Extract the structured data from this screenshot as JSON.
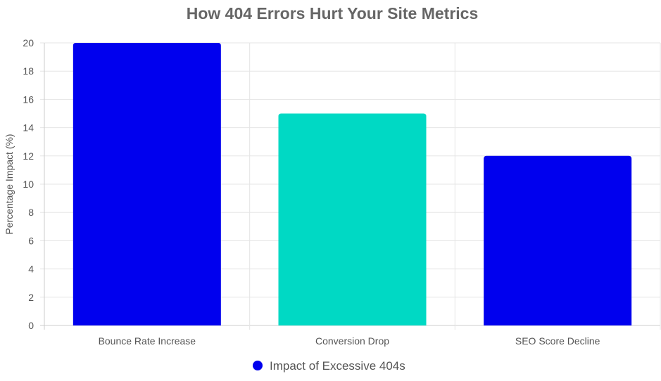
{
  "chart_data": {
    "type": "bar",
    "title": "How 404 Errors Hurt Your Site Metrics",
    "xlabel": "",
    "ylabel": "Percentage Impact (%)",
    "categories": [
      "Bounce Rate Increase",
      "Conversion Drop",
      "SEO Score Decline"
    ],
    "series": [
      {
        "name": "Impact of Excessive 404s",
        "values": [
          20,
          15,
          12
        ],
        "colors": [
          "#0000ee",
          "#00d9c4",
          "#0000ee"
        ]
      }
    ],
    "ylim": [
      0,
      20
    ],
    "yticks": [
      "0",
      "2",
      "4",
      "6",
      "8",
      "10",
      "12",
      "14",
      "16",
      "18",
      "20"
    ],
    "grid": true,
    "legend_position": "bottom",
    "legend_marker_color": "#0000ee"
  }
}
